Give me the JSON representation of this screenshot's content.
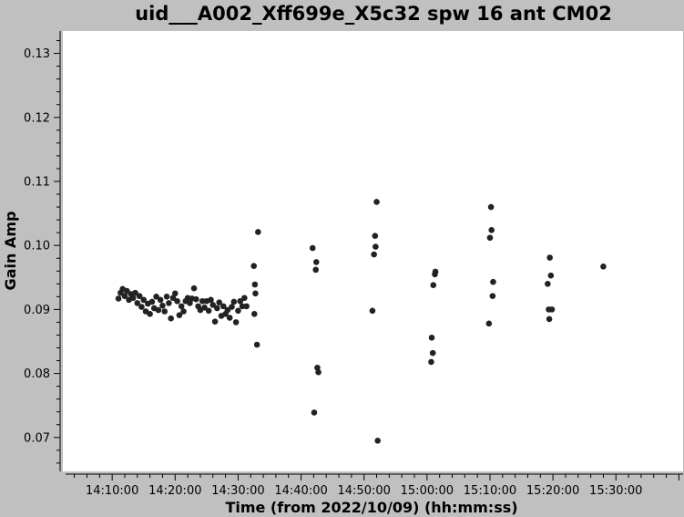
{
  "chart_data": {
    "type": "scatter",
    "title": "uid___A002_Xff699e_X5c32 spw 16 ant CM02",
    "xlabel": "Time (from 2022/10/09) (hh:mm:ss)",
    "ylabel": "Gain Amp",
    "x_unit": "hh:mm:ss",
    "xlim": [
      "14:02:10",
      "15:40:40"
    ],
    "ylim": [
      0.0647,
      0.1335
    ],
    "x_tick_labels": [
      "14:10:00",
      "14:20:00",
      "14:30:00",
      "14:40:00",
      "14:50:00",
      "15:00:00",
      "15:10:00",
      "15:20:00",
      "15:30:00"
    ],
    "y_tick_labels": [
      "0.07",
      "0.08",
      "0.09",
      "0.10",
      "0.11",
      "0.12",
      "0.13"
    ],
    "grid": false,
    "legend": "none",
    "marker_color": "#222222",
    "background": "#ffffff",
    "frame_color": "#c0c0c0",
    "points": [
      [
        "14:11:00",
        0.0917
      ],
      [
        "14:11:20",
        0.0926
      ],
      [
        "14:11:40",
        0.0932
      ],
      [
        "14:12:00",
        0.0921
      ],
      [
        "14:12:20",
        0.0929
      ],
      [
        "14:12:40",
        0.0915
      ],
      [
        "14:13:00",
        0.0924
      ],
      [
        "14:13:20",
        0.0918
      ],
      [
        "14:13:40",
        0.0926
      ],
      [
        "14:14:00",
        0.091
      ],
      [
        "14:14:20",
        0.0921
      ],
      [
        "14:14:40",
        0.0904
      ],
      [
        "14:15:00",
        0.0915
      ],
      [
        "14:15:20",
        0.0897
      ],
      [
        "14:15:40",
        0.0909
      ],
      [
        "14:16:00",
        0.0893
      ],
      [
        "14:16:20",
        0.0912
      ],
      [
        "14:16:40",
        0.0902
      ],
      [
        "14:17:00",
        0.092
      ],
      [
        "14:17:20",
        0.0899
      ],
      [
        "14:17:40",
        0.0915
      ],
      [
        "14:18:00",
        0.0906
      ],
      [
        "14:18:20",
        0.0897
      ],
      [
        "14:18:40",
        0.092
      ],
      [
        "14:19:00",
        0.091
      ],
      [
        "14:19:20",
        0.0886
      ],
      [
        "14:19:40",
        0.0918
      ],
      [
        "14:20:00",
        0.0925
      ],
      [
        "14:20:20",
        0.0913
      ],
      [
        "14:20:40",
        0.0891
      ],
      [
        "14:21:00",
        0.0905
      ],
      [
        "14:21:20",
        0.0897
      ],
      [
        "14:21:40",
        0.0913
      ],
      [
        "14:22:00",
        0.0918
      ],
      [
        "14:22:20",
        0.091
      ],
      [
        "14:22:40",
        0.0917
      ],
      [
        "14:23:00",
        0.0933
      ],
      [
        "14:23:20",
        0.0916
      ],
      [
        "14:23:40",
        0.0905
      ],
      [
        "14:24:00",
        0.0899
      ],
      [
        "14:24:20",
        0.0913
      ],
      [
        "14:24:40",
        0.0903
      ],
      [
        "14:25:00",
        0.0913
      ],
      [
        "14:25:20",
        0.0898
      ],
      [
        "14:25:40",
        0.0915
      ],
      [
        "14:26:00",
        0.0907
      ],
      [
        "14:26:20",
        0.0881
      ],
      [
        "14:26:40",
        0.0902
      ],
      [
        "14:27:00",
        0.0911
      ],
      [
        "14:27:20",
        0.089
      ],
      [
        "14:27:40",
        0.0905
      ],
      [
        "14:28:00",
        0.0893
      ],
      [
        "14:28:20",
        0.0899
      ],
      [
        "14:28:40",
        0.0887
      ],
      [
        "14:29:00",
        0.0904
      ],
      [
        "14:29:20",
        0.0912
      ],
      [
        "14:29:40",
        0.088
      ],
      [
        "14:30:00",
        0.0898
      ],
      [
        "14:30:20",
        0.0913
      ],
      [
        "14:30:40",
        0.0905
      ],
      [
        "14:31:00",
        0.0918
      ],
      [
        "14:31:20",
        0.0905
      ],
      [
        "14:32:30",
        0.0968
      ],
      [
        "14:32:40",
        0.0939
      ],
      [
        "14:32:45",
        0.0925
      ],
      [
        "14:32:35",
        0.0893
      ],
      [
        "14:33:00",
        0.0845
      ],
      [
        "14:33:10",
        0.1021
      ],
      [
        "14:41:50",
        0.0996
      ],
      [
        "14:42:05",
        0.0739
      ],
      [
        "14:42:20",
        0.0962
      ],
      [
        "14:42:25",
        0.0974
      ],
      [
        "14:42:35",
        0.0809
      ],
      [
        "14:42:45",
        0.0802
      ],
      [
        "14:51:20",
        0.0898
      ],
      [
        "14:51:35",
        0.0986
      ],
      [
        "14:51:45",
        0.1015
      ],
      [
        "14:51:50",
        0.0998
      ],
      [
        "14:52:00",
        0.1068
      ],
      [
        "14:52:10",
        0.0695
      ],
      [
        "15:00:40",
        0.0818
      ],
      [
        "15:00:45",
        0.0856
      ],
      [
        "15:00:55",
        0.0832
      ],
      [
        "15:01:00",
        0.0938
      ],
      [
        "15:01:15",
        0.0955
      ],
      [
        "15:01:20",
        0.0959
      ],
      [
        "15:09:50",
        0.0878
      ],
      [
        "15:10:00",
        0.1012
      ],
      [
        "15:10:10",
        0.106
      ],
      [
        "15:10:15",
        0.1024
      ],
      [
        "15:10:25",
        0.0921
      ],
      [
        "15:10:30",
        0.0943
      ],
      [
        "15:19:10",
        0.094
      ],
      [
        "15:19:20",
        0.09
      ],
      [
        "15:19:25",
        0.0885
      ],
      [
        "15:19:30",
        0.0981
      ],
      [
        "15:19:40",
        0.0953
      ],
      [
        "15:19:50",
        0.09
      ],
      [
        "15:28:00",
        0.0967
      ]
    ]
  }
}
